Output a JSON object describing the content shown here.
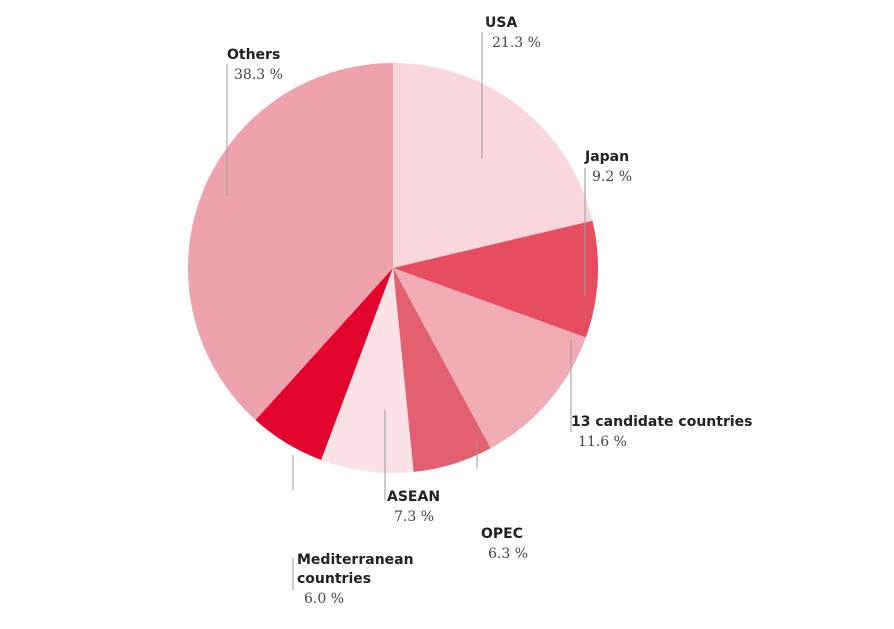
{
  "chart_data": {
    "type": "pie",
    "categories": [
      "USA",
      "Japan",
      "13 candidate countries",
      "OPEC",
      "ASEAN",
      "Mediterranean countries",
      "Others"
    ],
    "values": [
      21.3,
      9.2,
      11.6,
      6.3,
      7.3,
      6.0,
      38.3
    ],
    "value_labels": [
      "21.3 %",
      "9.2 %",
      "11.6 %",
      "6.3 %",
      "7.3 %",
      "6.0 %",
      "38.3 %"
    ],
    "colors": [
      "#fad6dd",
      "#e64d60",
      "#f1abb5",
      "#e2606f",
      "#fbe2e7",
      "#e2042c",
      "#eea2ad"
    ]
  }
}
